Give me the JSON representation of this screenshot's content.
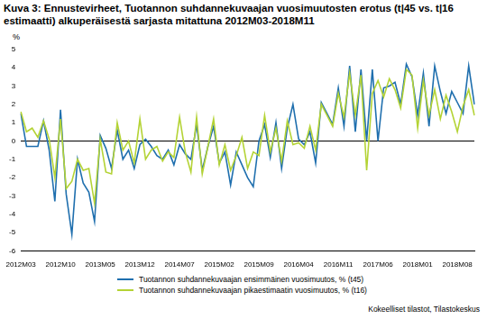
{
  "chart_data": {
    "type": "line",
    "title": "Kuva 3: Ennustevirheet, Tuotannon suhdannekuvaajan vuosimuutosten erotus (t|45 vs. t|16 estimaatti) alkuperäisestä sarjasta mitattuna 2012M03-2018M11",
    "y_label": "%",
    "source": "Kokeelliset tilastot, Tilastokeskus",
    "categories": [
      "2012M03",
      null,
      null,
      null,
      null,
      null,
      null,
      "2012M10",
      null,
      null,
      null,
      null,
      null,
      null,
      "2013M05",
      null,
      null,
      null,
      null,
      null,
      null,
      "2013M12",
      null,
      null,
      null,
      null,
      null,
      null,
      "2014M07",
      null,
      null,
      null,
      null,
      null,
      null,
      "2015M02",
      null,
      null,
      null,
      null,
      null,
      null,
      "2015M09",
      null,
      null,
      null,
      null,
      null,
      null,
      "2016M04",
      null,
      null,
      null,
      null,
      null,
      null,
      "2016M11",
      null,
      null,
      null,
      null,
      null,
      null,
      "2017M06",
      null,
      null,
      null,
      null,
      null,
      null,
      "2018M01",
      null,
      null,
      null,
      null,
      null,
      null,
      "2018M08",
      null,
      null,
      null
    ],
    "series": [
      {
        "name": "Tuotannon suhdannekuvaajan ensimmäinen vuosimuutos, % (t45)",
        "color": "#1f6fae",
        "values": [
          1.5,
          -0.3,
          -0.3,
          -0.3,
          1.1,
          -0.5,
          -3.3,
          1.7,
          -2.9,
          -5.1,
          -1.0,
          -2.3,
          -2.8,
          -4.4,
          0.3,
          -0.4,
          -1.5,
          0.6,
          -1.0,
          -0.5,
          -1.5,
          -0.2,
          0.1,
          -0.3,
          -0.8,
          -1.0,
          -0.5,
          -1.3,
          -0.2,
          -0.7,
          -1.0,
          0.9,
          -1.6,
          -0.3,
          0.8,
          -1.2,
          -0.6,
          -2.4,
          -0.6,
          -1.3,
          -2.0,
          -2.5,
          0.0,
          0.9,
          -0.9,
          1.0,
          -1.5,
          0.7,
          2.0,
          0.1,
          -0.2,
          0.5,
          -1.2,
          2.1,
          1.5,
          0.9,
          2.9,
          0.8,
          4.1,
          0.5,
          3.9,
          0.0,
          3.9,
          0.0,
          2.9,
          3.0,
          3.2,
          2.0,
          4.2,
          3.5,
          1.4,
          3.7,
          0.8,
          4.1,
          2.7,
          1.5,
          2.7,
          2.1,
          1.5,
          4.1,
          2.0
        ]
      },
      {
        "name": "Tuotannon suhdannekuvaajan pikaestimaatin vuosimuutos, % (t16)",
        "color": "#b4d335",
        "values": [
          1.6,
          0.5,
          0.7,
          0.2,
          1.1,
          0.1,
          -2.0,
          1.2,
          -2.6,
          -2.2,
          -1.0,
          -1.6,
          -1.5,
          -3.4,
          0.1,
          -1.7,
          -1.8,
          1.0,
          -0.5,
          0.0,
          -1.2,
          1.2,
          -1.0,
          -0.5,
          -0.3,
          -1.1,
          -0.6,
          -0.9,
          1.3,
          -0.6,
          -1.7,
          1.3,
          -1.8,
          -0.3,
          1.2,
          -1.3,
          -0.2,
          -1.6,
          -0.8,
          0.2,
          -1.5,
          -0.6,
          -0.8,
          1.4,
          -0.6,
          0.7,
          -1.1,
          1.1,
          -0.2,
          -0.1,
          -0.4,
          0.8,
          -0.5,
          2.0,
          1.4,
          0.8,
          2.6,
          1.3,
          3.7,
          1.4,
          3.6,
          -1.6,
          2.6,
          3.3,
          2.4,
          3.4,
          2.8,
          1.8,
          3.9,
          3.6,
          0.7,
          3.3,
          1.4,
          2.8,
          1.2,
          2.5,
          1.6,
          0.5,
          1.9,
          2.8,
          1.4
        ]
      }
    ],
    "ylim": [
      -6,
      5
    ],
    "yticks": [
      -6,
      -5,
      -4,
      -3,
      -2,
      -1,
      0,
      1,
      2,
      3,
      4,
      5
    ],
    "grid": false,
    "legend": "bottom"
  }
}
